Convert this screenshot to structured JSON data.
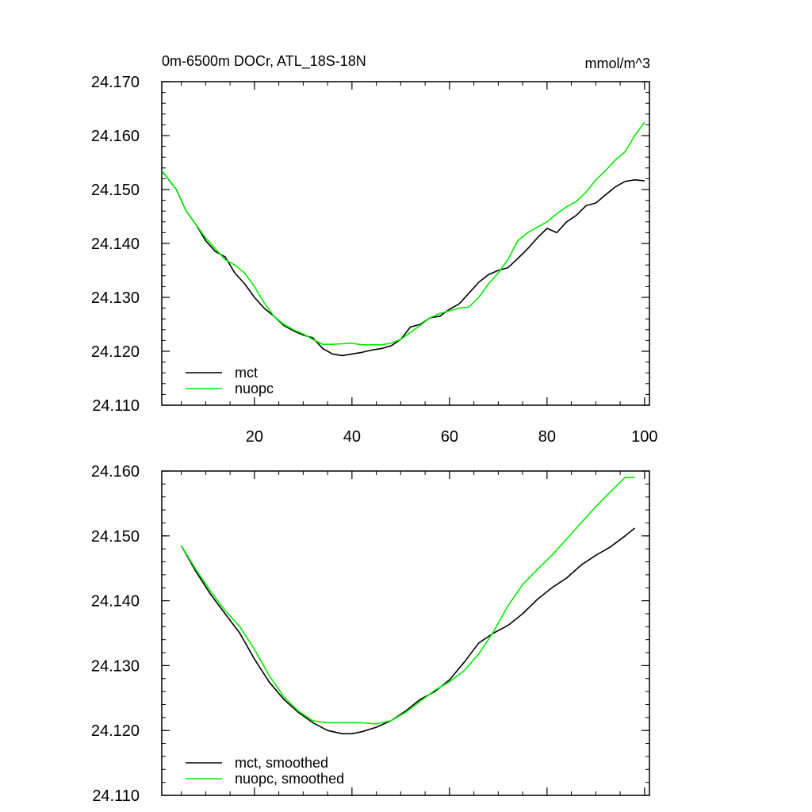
{
  "colors": {
    "mct": "#000000",
    "nuopc": "#00ee00",
    "frame": "#000000"
  },
  "chart_data": [
    {
      "type": "line",
      "title": "0m-6500m DOCr, ATL_18S-18N",
      "units": "mmol/m^3",
      "xlim": [
        1,
        101
      ],
      "ylim": [
        24.11,
        24.17
      ],
      "x_ticks": [
        20,
        40,
        60,
        80,
        100
      ],
      "x_tick_labels": [
        "20",
        "40",
        "60",
        "80",
        "100"
      ],
      "y_ticks": [
        24.11,
        24.12,
        24.13,
        24.14,
        24.15,
        24.16,
        24.17
      ],
      "y_tick_labels": [
        "24.110",
        "24.120",
        "24.130",
        "24.140",
        "24.150",
        "24.160",
        "24.170"
      ],
      "legend_position": "bottom-left",
      "series": [
        {
          "name": "mct",
          "color_key": "mct",
          "x": [
            1,
            4,
            6,
            8,
            10,
            12,
            14,
            16,
            18,
            20,
            22,
            24,
            26,
            28,
            30,
            32,
            34,
            36,
            38,
            40,
            42,
            44,
            46,
            48,
            50,
            52,
            54,
            56,
            58,
            60,
            62,
            64,
            66,
            68,
            70,
            72,
            74,
            76,
            78,
            80,
            82,
            84,
            86,
            88,
            90,
            92,
            94,
            96,
            98,
            100
          ],
          "values": [
            24.1535,
            24.15,
            24.146,
            24.1435,
            24.1405,
            24.1385,
            24.1375,
            24.1345,
            24.1325,
            24.13,
            24.128,
            24.1265,
            24.1248,
            24.1238,
            24.123,
            24.1225,
            24.1205,
            24.1195,
            24.1192,
            24.1195,
            24.1198,
            24.1202,
            24.1205,
            24.121,
            24.1222,
            24.1245,
            24.125,
            24.1262,
            24.1265,
            24.1278,
            24.1288,
            24.1308,
            24.1328,
            24.1342,
            24.135,
            24.1355,
            24.1372,
            24.139,
            24.141,
            24.1428,
            24.142,
            24.144,
            24.1452,
            24.147,
            24.1475,
            24.149,
            24.1505,
            24.1515,
            24.1518,
            24.1516
          ]
        },
        {
          "name": "nuopc",
          "color_key": "nuopc",
          "x": [
            1,
            4,
            6,
            8,
            10,
            12,
            14,
            16,
            18,
            20,
            22,
            24,
            26,
            28,
            30,
            32,
            34,
            36,
            38,
            40,
            42,
            44,
            46,
            48,
            50,
            52,
            54,
            56,
            58,
            60,
            62,
            64,
            66,
            68,
            70,
            72,
            74,
            76,
            78,
            80,
            82,
            84,
            86,
            88,
            90,
            92,
            94,
            96,
            98,
            100
          ],
          "values": [
            24.1535,
            24.15,
            24.146,
            24.1435,
            24.141,
            24.139,
            24.137,
            24.136,
            24.1345,
            24.132,
            24.129,
            24.1265,
            24.125,
            24.124,
            24.1232,
            24.1222,
            24.1213,
            24.1213,
            24.1214,
            24.1215,
            24.1212,
            24.1212,
            24.1212,
            24.1215,
            24.1222,
            24.1235,
            24.1248,
            24.1262,
            24.127,
            24.1275,
            24.128,
            24.1282,
            24.13,
            24.1325,
            24.1345,
            24.137,
            24.1405,
            24.142,
            24.143,
            24.144,
            24.1455,
            24.1468,
            24.1478,
            24.1495,
            24.1518,
            24.1535,
            24.1555,
            24.157,
            24.16,
            24.1625
          ]
        }
      ]
    },
    {
      "type": "line",
      "title": "",
      "xlim": [
        1,
        101
      ],
      "ylim": [
        24.11,
        24.16
      ],
      "x_ticks": [
        20,
        40,
        60,
        80,
        100
      ],
      "x_tick_labels": [],
      "y_ticks": [
        24.11,
        24.12,
        24.13,
        24.14,
        24.15,
        24.16
      ],
      "y_tick_labels": [
        "24.110",
        "24.120",
        "24.130",
        "24.140",
        "24.150",
        "24.160"
      ],
      "legend_position": "bottom-left",
      "series": [
        {
          "name": "mct, smoothed",
          "color_key": "mct",
          "x": [
            5,
            8,
            11,
            14,
            17,
            20,
            23,
            26,
            29,
            32,
            35,
            38,
            40,
            42,
            45,
            48,
            51,
            54,
            57,
            60,
            63,
            66,
            69,
            72,
            75,
            78,
            81,
            84,
            87,
            90,
            93,
            96,
            98
          ],
          "values": [
            24.1485,
            24.1445,
            24.141,
            24.138,
            24.135,
            24.131,
            24.1275,
            24.1248,
            24.1228,
            24.1212,
            24.12,
            24.1195,
            24.1195,
            24.1198,
            24.1205,
            24.1215,
            24.123,
            24.1248,
            24.126,
            24.1278,
            24.1305,
            24.1335,
            24.135,
            24.1362,
            24.138,
            24.1402,
            24.142,
            24.1435,
            24.1455,
            24.147,
            24.1483,
            24.15,
            24.1512
          ]
        },
        {
          "name": "nuopc, smoothed",
          "color_key": "nuopc",
          "x": [
            5,
            8,
            11,
            14,
            17,
            20,
            23,
            26,
            29,
            32,
            35,
            38,
            40,
            42,
            45,
            48,
            51,
            54,
            57,
            60,
            63,
            66,
            69,
            72,
            75,
            78,
            81,
            84,
            87,
            90,
            93,
            96,
            98
          ],
          "values": [
            24.1485,
            24.1448,
            24.1415,
            24.1385,
            24.136,
            24.1325,
            24.1285,
            24.1252,
            24.123,
            24.1215,
            24.1212,
            24.1212,
            24.1212,
            24.1212,
            24.121,
            24.1215,
            24.1228,
            24.1245,
            24.1262,
            24.1275,
            24.1292,
            24.1318,
            24.1352,
            24.1392,
            24.1425,
            24.1448,
            24.147,
            24.1495,
            24.152,
            24.1545,
            24.1568,
            24.159,
            24.159
          ]
        }
      ]
    }
  ]
}
